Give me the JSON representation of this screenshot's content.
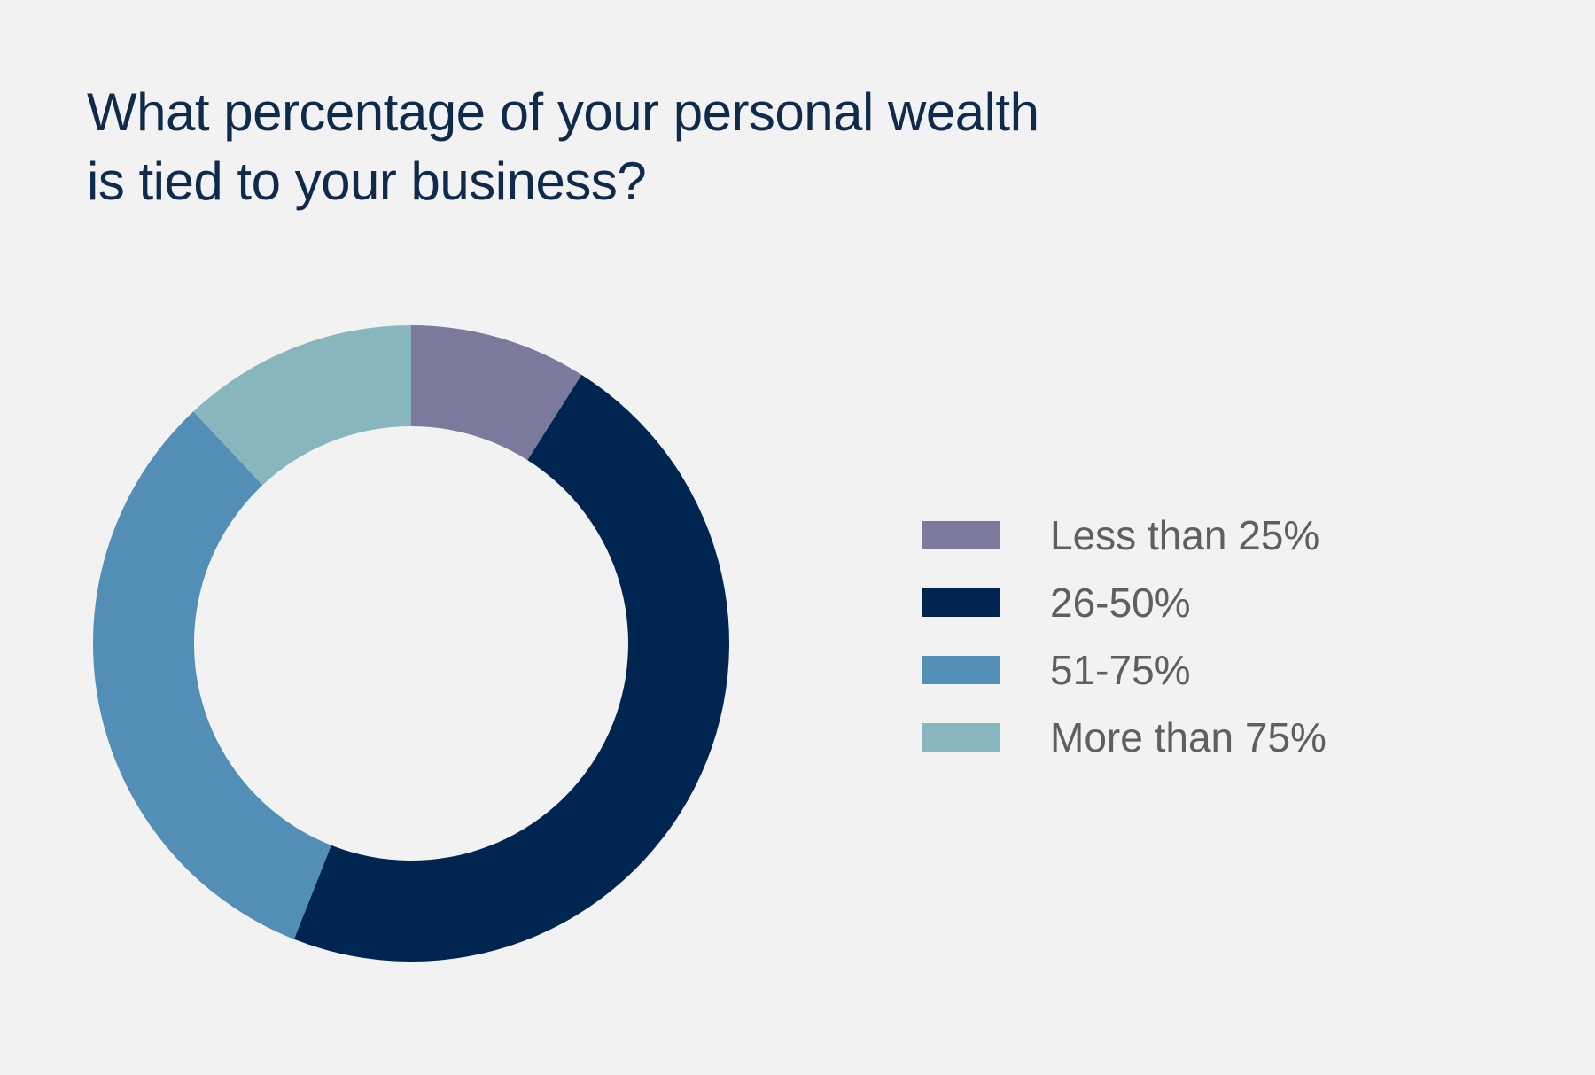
{
  "chart_data": {
    "type": "pie",
    "variant": "donut",
    "title_lines": [
      "What percentage of your personal wealth",
      "is tied to your business?"
    ],
    "categories": [
      "Less than 25%",
      "26-50%",
      "51-75%",
      "More than 75%"
    ],
    "values": [
      9,
      47,
      32,
      12
    ],
    "unit": "%",
    "colors": [
      "#7b7a9c",
      "#002550",
      "#528eb5",
      "#87b7bc"
    ],
    "legend_position": "right"
  }
}
